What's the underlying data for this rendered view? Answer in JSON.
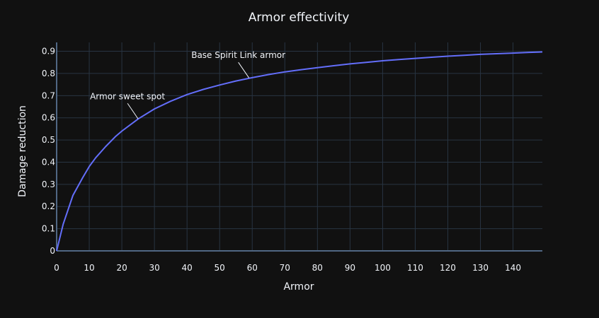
{
  "chart_data": {
    "type": "line",
    "title": "Armor effectivity",
    "xlabel": "Armor",
    "ylabel": "Damage reduction",
    "xlim": [
      0,
      149
    ],
    "ylim": [
      0,
      0.94
    ],
    "x_ticks": [
      0,
      10,
      20,
      30,
      40,
      50,
      60,
      70,
      80,
      90,
      100,
      110,
      120,
      130,
      140
    ],
    "y_ticks": [
      0,
      0.1,
      0.2,
      0.3,
      0.4,
      0.5,
      0.6,
      0.7,
      0.8,
      0.9
    ],
    "y_tick_labels": [
      "0",
      "0.1",
      "0.2",
      "0.3",
      "0.4",
      "0.5",
      "0.6",
      "0.7",
      "0.8",
      "0.9"
    ],
    "grid": true,
    "series": [
      {
        "color": "#636efa",
        "x": [
          0,
          2,
          5,
          8,
          10,
          12,
          15,
          18,
          20,
          25,
          30,
          35,
          40,
          45,
          50,
          55,
          60,
          65,
          70,
          75,
          80,
          85,
          90,
          95,
          100,
          105,
          110,
          115,
          120,
          125,
          130,
          135,
          140,
          145,
          149
        ],
        "y": [
          0,
          0.12,
          0.25,
          0.33,
          0.38,
          0.42,
          0.47,
          0.515,
          0.54,
          0.595,
          0.64,
          0.675,
          0.705,
          0.728,
          0.748,
          0.766,
          0.781,
          0.795,
          0.807,
          0.817,
          0.826,
          0.835,
          0.843,
          0.85,
          0.857,
          0.863,
          0.868,
          0.873,
          0.878,
          0.882,
          0.886,
          0.889,
          0.892,
          0.895,
          0.897
        ]
      }
    ],
    "annotations": [
      {
        "text": "Armor sweet spot",
        "x": 25,
        "y": 0.595
      },
      {
        "text": "Base Spirit Link armor",
        "x": 59,
        "y": 0.78
      }
    ]
  }
}
